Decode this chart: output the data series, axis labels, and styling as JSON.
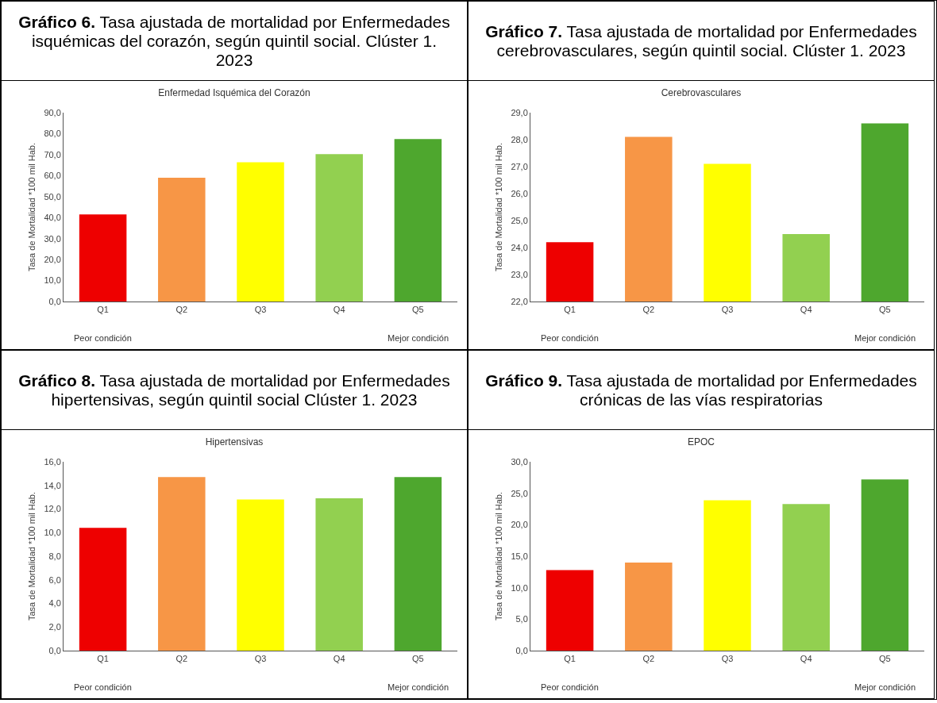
{
  "chart_data": [
    {
      "type": "bar",
      "title": "Gráfico 6. Tasa ajustada de mortalidad por Enfermedades isquémicas del corazón, según quintil social. Clúster 1. 2023",
      "subtitle": "Enfermedad Isquémica del Corazón",
      "ylabel": "Tasa de Mortalidad *100 mil Hab.",
      "categories": [
        "Q1",
        "Q2",
        "Q3",
        "Q4",
        "Q5"
      ],
      "values": [
        41.5,
        59.0,
        66.4,
        70.2,
        77.4
      ],
      "colors": [
        "#ee0000",
        "#f79646",
        "#ffff00",
        "#92d050",
        "#4ea72e"
      ],
      "ylim": [
        0,
        90
      ],
      "yticks": [
        {
          "value": 0,
          "label": "0,0"
        },
        {
          "value": 10,
          "label": "10,0"
        },
        {
          "value": 20,
          "label": "20,0"
        },
        {
          "value": 30,
          "label": "30,0"
        },
        {
          "value": 40,
          "label": "40,0"
        },
        {
          "value": 50,
          "label": "50,0"
        },
        {
          "value": 60,
          "label": "60,0"
        },
        {
          "value": 70,
          "label": "70,0"
        },
        {
          "value": 80,
          "label": "80,0"
        },
        {
          "value": 90,
          "label": "90,0"
        }
      ],
      "grid": false,
      "annotations": [
        "Peor condición",
        "Mejor condición"
      ]
    },
    {
      "type": "bar",
      "title": "Gráfico 7. Tasa ajustada de mortalidad por Enfermedades cerebrovasculares, según quintil social. Clúster 1. 2023",
      "subtitle": "Cerebrovasculares",
      "ylabel": "Tasa de Mortalidad *100 mil Hab.",
      "categories": [
        "Q1",
        "Q2",
        "Q3",
        "Q4",
        "Q5"
      ],
      "values": [
        24.2,
        28.1,
        27.1,
        24.5,
        28.6
      ],
      "colors": [
        "#ee0000",
        "#f79646",
        "#ffff00",
        "#92d050",
        "#4ea72e"
      ],
      "ylim": [
        22,
        29
      ],
      "yticks": [
        {
          "value": 22,
          "label": "22,0"
        },
        {
          "value": 23,
          "label": "23,0"
        },
        {
          "value": 24,
          "label": "24,0"
        },
        {
          "value": 25,
          "label": "25,0"
        },
        {
          "value": 26,
          "label": "26,0"
        },
        {
          "value": 27,
          "label": "27,0"
        },
        {
          "value": 28,
          "label": "28,0"
        },
        {
          "value": 29,
          "label": "29,0"
        }
      ],
      "grid": false,
      "annotations": [
        "Peor condición",
        "Mejor condición"
      ]
    },
    {
      "type": "bar",
      "title": "Gráfico 8. Tasa ajustada de mortalidad por Enfermedades hipertensivas, según quintil social Clúster 1. 2023",
      "subtitle": "Hipertensivas",
      "ylabel": "Tasa de Mortalidad *100 mil Hab.",
      "categories": [
        "Q1",
        "Q2",
        "Q3",
        "Q4",
        "Q5"
      ],
      "values": [
        10.4,
        14.7,
        12.8,
        12.9,
        14.7
      ],
      "colors": [
        "#ee0000",
        "#f79646",
        "#ffff00",
        "#92d050",
        "#4ea72e"
      ],
      "ylim": [
        0,
        16
      ],
      "yticks": [
        {
          "value": 0,
          "label": "0,0"
        },
        {
          "value": 2,
          "label": "2,0"
        },
        {
          "value": 4,
          "label": "4,0"
        },
        {
          "value": 6,
          "label": "6,0"
        },
        {
          "value": 8,
          "label": "8,0"
        },
        {
          "value": 10,
          "label": "10,0"
        },
        {
          "value": 12,
          "label": "12,0"
        },
        {
          "value": 14,
          "label": "14,0"
        },
        {
          "value": 16,
          "label": "16,0"
        }
      ],
      "grid": false,
      "annotations": [
        "Peor condición",
        "Mejor condición"
      ]
    },
    {
      "type": "bar",
      "title": "Gráfico 9. Tasa ajustada de mortalidad por Enfermedades crónicas de las vías respiratorias",
      "subtitle": "EPOC",
      "ylabel": "Tasa de Mortalidad *100 mil Hab.",
      "categories": [
        "Q1",
        "Q2",
        "Q3",
        "Q4",
        "Q5"
      ],
      "values": [
        12.8,
        14.0,
        23.9,
        23.3,
        27.2
      ],
      "colors": [
        "#ee0000",
        "#f79646",
        "#ffff00",
        "#92d050",
        "#4ea72e"
      ],
      "ylim": [
        0,
        30
      ],
      "yticks": [
        {
          "value": 0,
          "label": "0,0"
        },
        {
          "value": 5,
          "label": "5,0"
        },
        {
          "value": 10,
          "label": "10,0"
        },
        {
          "value": 15,
          "label": "15,0"
        },
        {
          "value": 20,
          "label": "20,0"
        },
        {
          "value": 25,
          "label": "25,0"
        },
        {
          "value": 30,
          "label": "30,0"
        }
      ],
      "grid": false,
      "annotations": [
        "Peor condición",
        "Mejor condición"
      ]
    }
  ]
}
